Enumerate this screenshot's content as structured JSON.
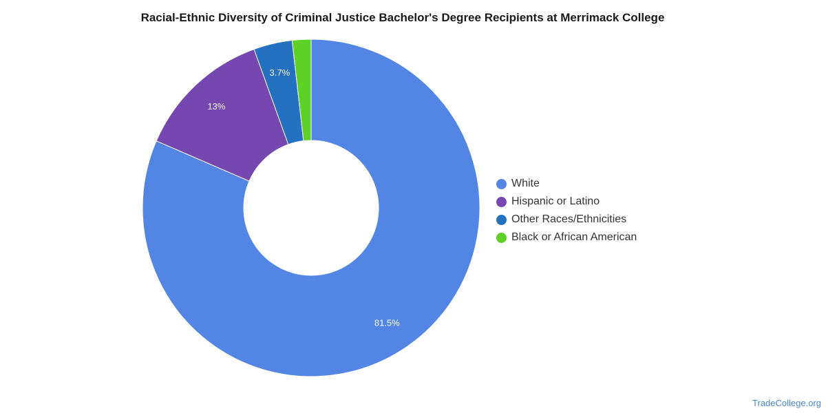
{
  "chart_data": {
    "type": "pie",
    "title": "Racial-Ethnic Diversity of Criminal Justice Bachelor's Degree Recipients at Merrimack College",
    "categories": [
      "White",
      "Hispanic or Latino",
      "Other Races/Ethnicities",
      "Black or African American"
    ],
    "values": [
      81.5,
      13,
      3.7,
      1.8
    ],
    "data_labels": [
      "81.5%",
      "13%",
      "3.7%",
      ""
    ],
    "colors": [
      "#5386e4",
      "#7647b0",
      "#2471c2",
      "#5ed126"
    ],
    "donut": true,
    "legend_position": "right"
  },
  "source": "TradeCollege.org"
}
